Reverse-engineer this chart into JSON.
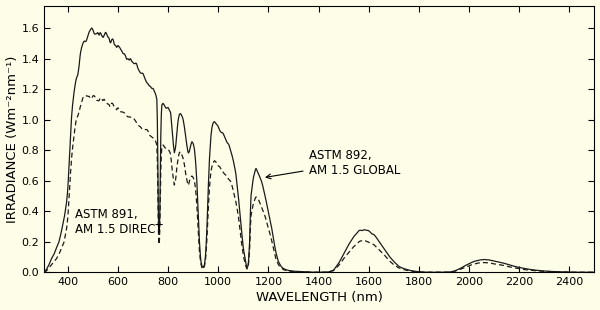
{
  "background_color": "#FEFEE8",
  "outer_background": "#FEFEE8",
  "xlabel": "WAVELENGTH (nm)",
  "ylabel": "IRRADIANCE (Wm⁻²nm⁻¹)",
  "xlim": [
    305,
    2500
  ],
  "ylim": [
    0.0,
    1.75
  ],
  "xticks": [
    400,
    600,
    800,
    1000,
    1200,
    1400,
    1600,
    1800,
    2000,
    2200,
    2400
  ],
  "yticks": [
    0.0,
    0.2,
    0.4,
    0.6,
    0.8,
    1.0,
    1.2,
    1.4,
    1.6
  ],
  "label_global": "ASTM 892,\nAM 1.5 GLOBAL",
  "label_direct": "ASTM 891,\nAM 1.5 DIRECT",
  "line_color": "#1a1a1a",
  "annotation_fontsize": 8.5,
  "axis_fontsize": 9.5,
  "tick_fontsize": 8
}
